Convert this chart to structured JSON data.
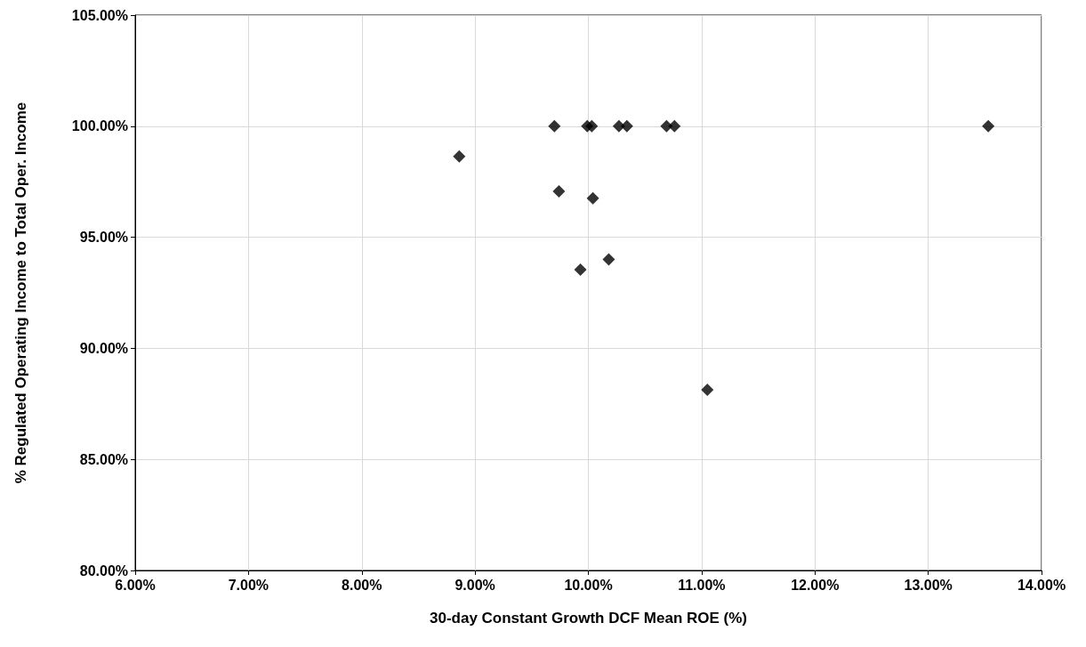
{
  "chart_data": {
    "type": "scatter",
    "xlabel": "30-day Constant Growth DCF Mean ROE (%)",
    "ylabel": "% Regulated Operating Income to Total Oper. Income",
    "x": [
      8.86,
      9.7,
      9.99,
      10.03,
      10.27,
      10.34,
      10.69,
      10.76,
      13.53,
      9.74,
      10.04,
      9.93,
      10.18,
      11.05
    ],
    "series": [
      {
        "color": "#000000",
        "values": [
          98.64,
          100,
          100,
          100,
          100,
          100,
          100,
          100,
          100,
          97.07,
          96.76,
          93.54,
          94.0,
          88.13
        ]
      }
    ],
    "xlim": [
      6,
      14
    ],
    "xticks": [
      {
        "value": 6,
        "label": "6.00%"
      },
      {
        "value": 7,
        "label": "7.00%"
      },
      {
        "value": 8,
        "label": "8.00%"
      },
      {
        "value": 9,
        "label": "9.00%"
      },
      {
        "value": 10,
        "label": "10.00%"
      },
      {
        "value": 11,
        "label": "11.00%"
      },
      {
        "value": 12,
        "label": "12.00%"
      },
      {
        "value": 13,
        "label": "13.00%"
      },
      {
        "value": 14,
        "label": "14.00%"
      }
    ],
    "ylim": [
      80,
      105
    ],
    "yticks": [
      {
        "value": 80,
        "label": "80.00%"
      },
      {
        "value": 85,
        "label": "85.00%"
      },
      {
        "value": 90,
        "label": "90.00%"
      },
      {
        "value": 95,
        "label": "95.00%"
      },
      {
        "value": 100,
        "label": "100.00%"
      },
      {
        "value": 105,
        "label": "105.00%"
      }
    ],
    "grid": true,
    "marker": "diamond"
  }
}
